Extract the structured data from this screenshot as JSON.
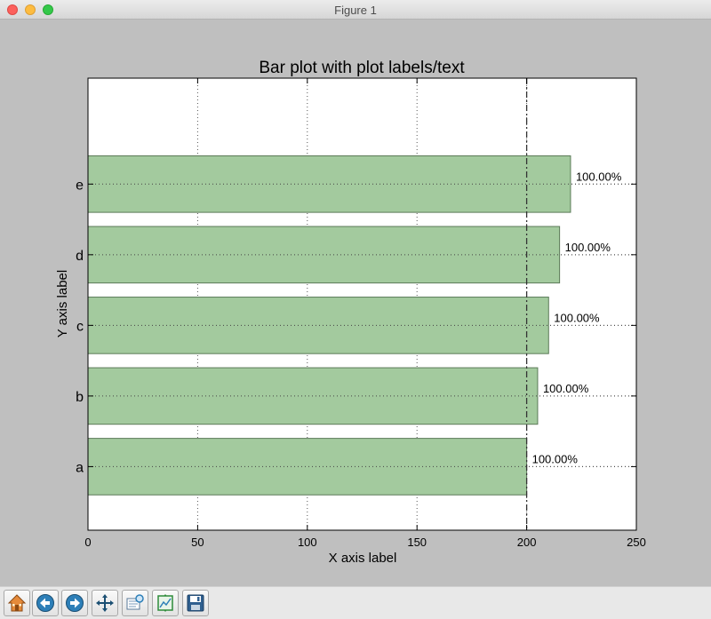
{
  "window": {
    "title": "Figure 1"
  },
  "colors": {
    "bar_fill": "#a3ca9e",
    "bar_edge": "#5b7a58",
    "figure_bg": "#bfbfbf",
    "axes_bg": "#ffffff"
  },
  "toolbar": {
    "buttons": [
      "home-icon",
      "back-icon",
      "forward-icon",
      "pan-icon",
      "configure-subplots-icon",
      "zoom-to-rect-icon",
      "save-icon"
    ]
  },
  "chart_data": {
    "type": "bar",
    "orientation": "horizontal",
    "title": "Bar plot with plot labels/text",
    "xlabel": "X axis label",
    "ylabel": "Y axis label",
    "categories": [
      "a",
      "b",
      "c",
      "d",
      "e"
    ],
    "values": [
      200,
      205,
      210,
      215,
      220
    ],
    "bar_labels": [
      "100.00%",
      "100.00%",
      "100.00%",
      "100.00%",
      "100.00%"
    ],
    "xlim": [
      0,
      250
    ],
    "xticks": [
      0,
      50,
      100,
      150,
      200,
      250
    ],
    "xtick_labels": [
      "0",
      "50",
      "100",
      "150",
      "200",
      "250"
    ],
    "ylim": [
      -0.9,
      5.5
    ],
    "reference_line": {
      "x": 200,
      "style": "dashed"
    },
    "grid": "dotted"
  }
}
